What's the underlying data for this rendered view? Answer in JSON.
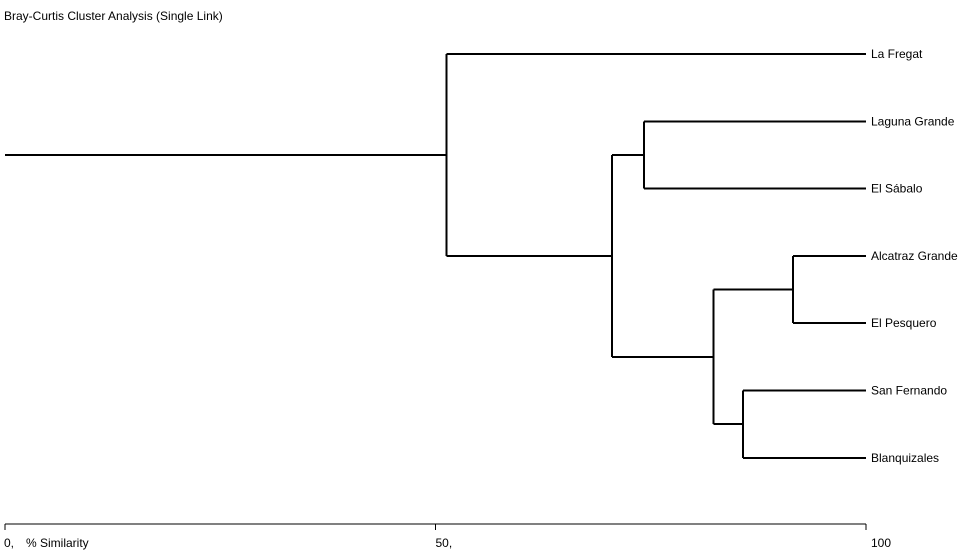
{
  "title": "Bray-Curtis Cluster Analysis (Single Link)",
  "axis": {
    "label": "% Similarity",
    "min": 0,
    "max": 100,
    "ticks": [
      {
        "value": 0,
        "label": "0,"
      },
      {
        "value": 50,
        "label": "50,"
      },
      {
        "value": 100,
        "label": "100"
      }
    ]
  },
  "leaves": [
    "La Fregat",
    "Laguna Grande",
    "El Sábalo",
    "Alcatraz Grande",
    "El Pesquero",
    "San Fernando",
    "Blanquizales"
  ],
  "merges": [
    {
      "id": "n1",
      "children": [
        "Alcatraz Grande",
        "El Pesquero"
      ],
      "similarity": 91.5
    },
    {
      "id": "n2",
      "children": [
        "San Fernando",
        "Blanquizales"
      ],
      "similarity": 85.7
    },
    {
      "id": "n3",
      "children": [
        "Laguna Grande",
        "El Sábalo"
      ],
      "similarity": 74.2
    },
    {
      "id": "n4",
      "children": [
        "n1",
        "n2"
      ],
      "similarity": 82.3
    },
    {
      "id": "n5",
      "children": [
        "n3",
        "n4"
      ],
      "similarity": 70.5
    },
    {
      "id": "n6",
      "children": [
        "La Fregat",
        "n5"
      ],
      "similarity": 51.3
    }
  ]
}
